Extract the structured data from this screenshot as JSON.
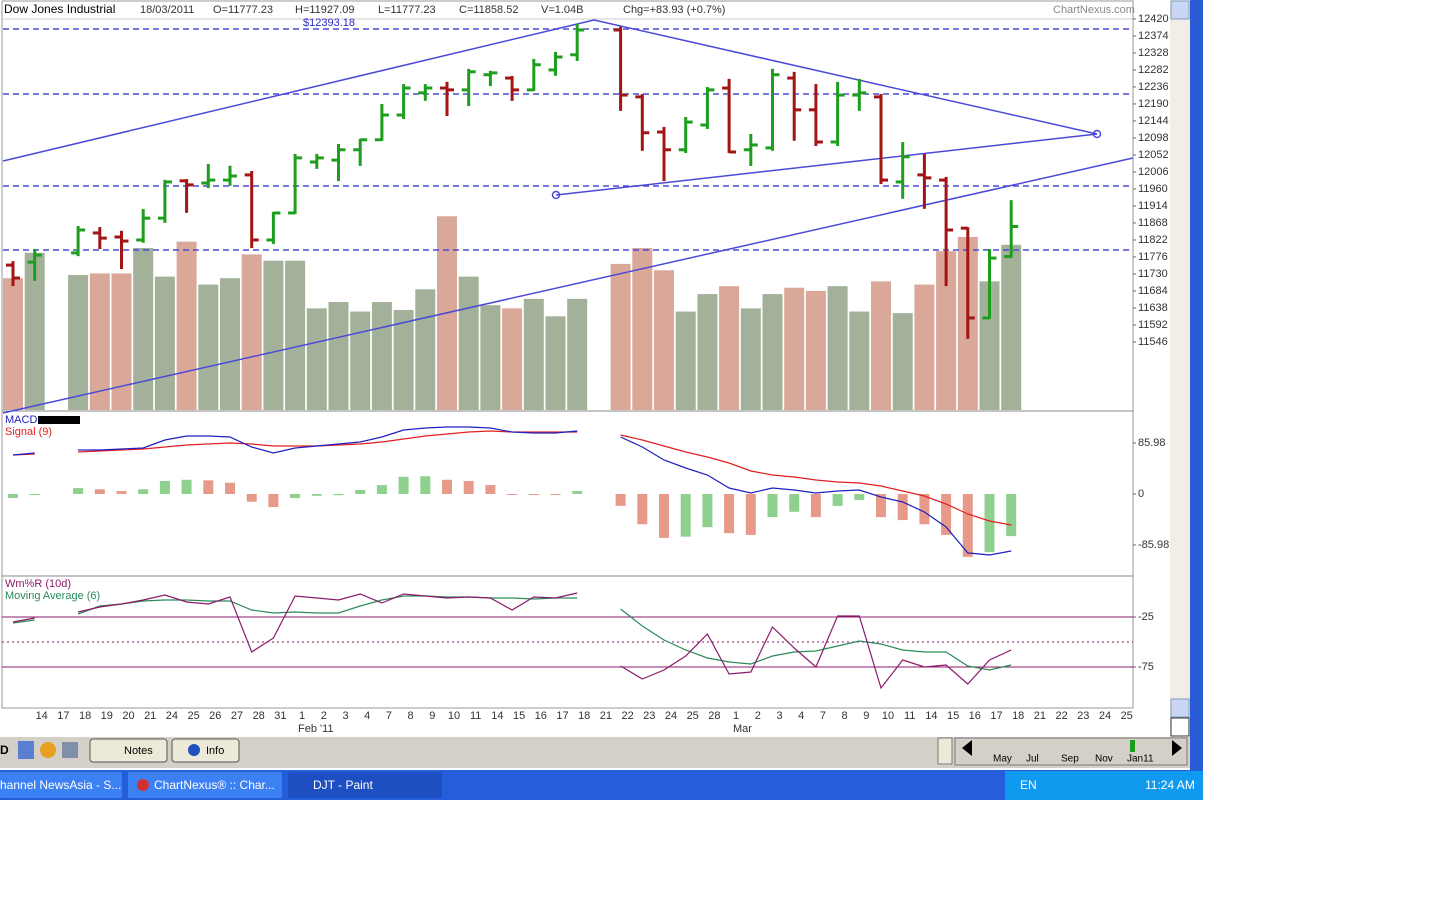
{
  "chart_data": {
    "type": "ohlc",
    "title": "Dow Jones Industrial",
    "header": [
      "18/03/2011",
      "O=11777.23",
      "H=11927.09",
      "L=11777.23",
      "C=11858.52",
      "V=1.04B",
      "Chg=+83.93 (+0.7%)"
    ],
    "brand": "ChartNexus.com",
    "price_label": "$12393.18",
    "months": [
      "Feb '11",
      "Mar"
    ],
    "categories": [
      null,
      "14",
      "17",
      "18",
      "19",
      "20",
      "21",
      "24",
      "25",
      "26",
      "27",
      "28",
      "31",
      "1",
      "2",
      "3",
      "4",
      "7",
      "8",
      "9",
      "10",
      "11",
      "14",
      "15",
      "16",
      "17",
      "18",
      "21",
      "22",
      "23",
      "24",
      "25",
      "28",
      "1",
      "2",
      "3",
      "4",
      "7",
      "8",
      "9",
      "10",
      "11",
      "14",
      "15",
      "16",
      "17",
      "18",
      "21",
      "22",
      "23",
      "24",
      "25"
    ],
    "open": [
      11754,
      11762,
      null,
      11787,
      11841,
      11830,
      11822,
      11881,
      11982,
      11976,
      11984,
      11998,
      11822,
      11895,
      12033,
      12038,
      12066,
      12093,
      12160,
      12220,
      12233,
      12228,
      12269,
      12260,
      12228,
      12282,
      12323,
      null,
      12390,
      12209,
      12114,
      12066,
      12133,
      12233,
      12066,
      12071,
      12260,
      12174,
      12087,
      12214,
      12209,
      11979,
      11998,
      11984,
      11854,
      11611,
      11777.23,
      null,
      null,
      null,
      null,
      null
    ],
    "high": [
      11762,
      11795,
      null,
      11857,
      11854,
      11844,
      11903,
      11982,
      11984,
      12025,
      12020,
      12006,
      11895,
      12052,
      12052,
      12079,
      12093,
      12187,
      12241,
      12241,
      12247,
      12282,
      12277,
      12263,
      12309,
      12328,
      12404,
      null,
      12396,
      12214,
      12125,
      12152,
      12233,
      12255,
      12106,
      12282,
      12274,
      12241,
      12247,
      12255,
      12214,
      12084,
      12052,
      11990,
      11854,
      11795,
      11927.09,
      null,
      null,
      null,
      null,
      null
    ],
    "low": [
      11700,
      11714,
      null,
      11781,
      11800,
      11746,
      11817,
      11871,
      11898,
      11965,
      11971,
      11803,
      11814,
      11895,
      12017,
      11984,
      12025,
      12093,
      12152,
      12201,
      12160,
      12187,
      12241,
      12201,
      12228,
      12269,
      12309,
      null,
      12174,
      12066,
      11984,
      12060,
      12125,
      12060,
      12025,
      12066,
      12093,
      12079,
      12079,
      12174,
      11976,
      11936,
      11909,
      11700,
      11557,
      11611,
      11777.23,
      null,
      null,
      null,
      null,
      null
    ],
    "close": [
      11719,
      11781,
      null,
      11849,
      11827,
      11819,
      11881,
      11979,
      11971,
      11984,
      11995,
      11822,
      11895,
      12044,
      12044,
      12066,
      12093,
      12160,
      12233,
      12233,
      12228,
      12277,
      12274,
      12228,
      12296,
      12317,
      12390,
      null,
      12214,
      12112,
      12066,
      12141,
      12228,
      12060,
      12079,
      12269,
      12174,
      12087,
      12214,
      12220,
      11984,
      12047,
      11990,
      11849,
      11611,
      11773,
      11858.52,
      null,
      null,
      null,
      null,
      null
    ],
    "up_color": "#1e9e1e",
    "down_color": "#a31515",
    "ylim": [
      11362,
      12436
    ],
    "yticks": [
      12420,
      12374,
      12328,
      12282,
      12236,
      12190,
      12144,
      12098,
      12052,
      12006,
      11960,
      11914,
      11868,
      11822,
      11776,
      11730,
      11684,
      11638,
      11592,
      11546
    ],
    "volume": {
      "values": [
        0.83,
        0.99,
        null,
        0.85,
        0.86,
        0.86,
        1.02,
        0.84,
        1.06,
        0.79,
        0.83,
        0.98,
        0.94,
        0.94,
        0.64,
        0.68,
        0.62,
        0.68,
        0.63,
        0.76,
        1.22,
        0.84,
        0.66,
        0.64,
        0.7,
        0.59,
        0.7,
        null,
        0.92,
        1.02,
        0.88,
        0.62,
        0.73,
        0.78,
        0.64,
        0.73,
        0.77,
        0.75,
        0.78,
        0.62,
        0.81,
        0.61,
        0.79,
        1.0,
        1.09,
        0.81,
        1.04,
        null,
        null,
        null,
        null,
        null
      ],
      "ylim": [
        0,
        2.5
      ],
      "up_color": "#a3b19a",
      "down_color": "#d9a898"
    },
    "macd": {
      "title": "MACD",
      "signal_title": "Signal (9)",
      "macd": [
        65.8,
        69.1,
        null,
        74.2,
        74.2,
        75.9,
        77.6,
        91.0,
        97.8,
        97.8,
        96.1,
        79.2,
        69.1,
        77.6,
        80.9,
        84.3,
        87.7,
        96.1,
        107.9,
        111.3,
        113.0,
        113.0,
        111.3,
        104.5,
        102.8,
        102.8,
        106.2,
        null,
        96.1,
        79.2,
        57.3,
        43.8,
        32.0,
        10.1,
        1.7,
        10.1,
        6.7,
        1.7,
        5.1,
        6.7,
        -5.1,
        -13.5,
        -30.3,
        -55.6,
        -99.4,
        -102.8,
        -96.1,
        null,
        null,
        null,
        null,
        null
      ],
      "signal": [
        65.8,
        67.4,
        null,
        70.8,
        72.5,
        74.2,
        75.9,
        79.2,
        82.6,
        84.3,
        86.0,
        84.3,
        80.9,
        80.9,
        80.9,
        82.6,
        84.3,
        87.7,
        92.7,
        97.8,
        101.2,
        104.5,
        106.2,
        104.5,
        104.5,
        104.5,
        104.5,
        null,
        99.5,
        91.0,
        80.9,
        70.8,
        62.4,
        52.3,
        38.8,
        32.0,
        28.7,
        23.6,
        20.2,
        18.5,
        13.5,
        5.1,
        -3.4,
        -16.9,
        -33.7,
        -45.5,
        -52.3,
        null,
        null,
        null,
        null,
        null
      ],
      "histogram": [
        -6.7,
        -1,
        null,
        10,
        8,
        5,
        8,
        22,
        24,
        23,
        19,
        -13,
        -22,
        -7,
        -3,
        -2,
        7,
        15,
        29,
        30,
        24,
        22,
        15,
        -1,
        -1,
        -1,
        5,
        null,
        -20,
        -51,
        -74,
        -72,
        -56,
        -66,
        -69,
        -39,
        -30,
        -39,
        -20,
        -10,
        -39,
        -44,
        -51,
        -69,
        -106,
        -98,
        -71,
        null,
        null,
        null,
        null,
        null
      ],
      "macd_color": "#2020c0",
      "signal_color": "#e02020",
      "up_color": "#8fd08f",
      "down_color": "#e89a8a",
      "ylim": [
        -136.6,
        136.6
      ],
      "yticks": [
        85.98,
        0,
        -85.98
      ]
    },
    "wr": {
      "title": "Wm%R (10d)",
      "ma_title": "Moving Average (6)",
      "values": [
        -30,
        -26,
        null,
        -20,
        -15,
        -12,
        -8,
        -3,
        -10,
        -12,
        -5,
        -60,
        -46,
        -4,
        -6,
        -8,
        -2,
        -11,
        -2,
        -4,
        -6,
        -5,
        -6,
        -18,
        -5,
        -6,
        -1,
        null,
        -74,
        -87,
        -78,
        -64,
        -42,
        -82,
        -80,
        -35,
        -56,
        -75,
        -24,
        -24,
        -96,
        -68,
        -75,
        -73,
        -92,
        -68,
        -58,
        null,
        null,
        null,
        null,
        null
      ],
      "ma": [
        -31,
        -28,
        null,
        -22,
        -14,
        -12,
        -9,
        -8,
        -8,
        -9,
        -9,
        -18,
        -21,
        -20,
        -21,
        -21,
        -14,
        -8,
        -4,
        -4,
        -5,
        -5,
        -6,
        -6,
        -7,
        -6,
        -6,
        null,
        -17,
        -34,
        -48,
        -58,
        -66,
        -70,
        -72,
        -64,
        -60,
        -59,
        -54,
        -49,
        -52,
        -58,
        -60,
        -60,
        -74,
        -78,
        -73,
        null,
        null,
        null,
        null,
        null
      ],
      "color": "#8b1a6b",
      "ma_color": "#2a8a5a",
      "ylim": [
        -116,
        14
      ],
      "yticks": [
        -25,
        -75
      ]
    }
  },
  "ui": {
    "toolbar_letter": "D",
    "buttons": [
      "Notes",
      "Info"
    ],
    "navigator_labels": [
      "May",
      "Jul",
      "Sep",
      "Nov",
      "Jan11"
    ],
    "taskbar": {
      "tasks": [
        "hannel NewsAsia - S...",
        "ChartNexus® :: Char...",
        "DJT - Paint"
      ],
      "language": "EN",
      "clock": "11:24 AM"
    }
  }
}
